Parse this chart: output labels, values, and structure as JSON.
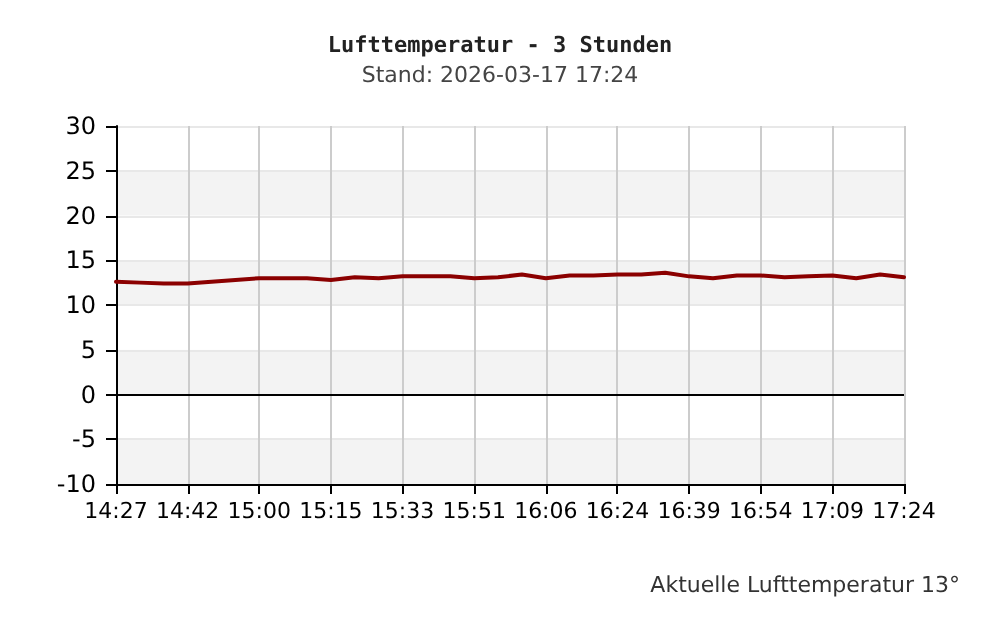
{
  "chart_data": {
    "type": "line",
    "title": "Lufttemperatur - 3 Stunden",
    "subtitle": "Stand: 2026-03-17 17:24",
    "categories": [
      "14:27",
      null,
      null,
      "14:42",
      null,
      null,
      "15:00",
      null,
      null,
      "15:15",
      null,
      null,
      "15:33",
      null,
      null,
      "15:51",
      null,
      null,
      "16:06",
      null,
      null,
      "16:24",
      null,
      null,
      "16:39",
      null,
      null,
      "16:54",
      null,
      null,
      "17:09",
      null,
      null,
      "17:24"
    ],
    "series": [
      {
        "color": "#8b0000",
        "values": [
          12.6,
          12.5,
          12.4,
          12.4,
          12.6,
          12.8,
          13.0,
          13.0,
          13.0,
          12.8,
          13.1,
          13.0,
          13.2,
          13.2,
          13.2,
          13.0,
          13.1,
          13.4,
          13.0,
          13.3,
          13.3,
          13.4,
          13.4,
          13.6,
          13.2,
          13.0,
          13.3,
          13.3,
          13.1,
          13.2,
          13.3,
          13.0,
          13.4,
          13.1
        ]
      }
    ],
    "ylim": [
      -10,
      30
    ],
    "yticks": [
      -10,
      -5,
      0,
      5,
      10,
      15,
      20,
      25,
      30
    ],
    "grid": true,
    "marker": "none",
    "line_style": "solid",
    "ref_lines": [
      {
        "axis": "y",
        "value": 0,
        "color": "#000000"
      }
    ],
    "annotations": [
      "Aktuelle Lufttemperatur 13°"
    ]
  }
}
